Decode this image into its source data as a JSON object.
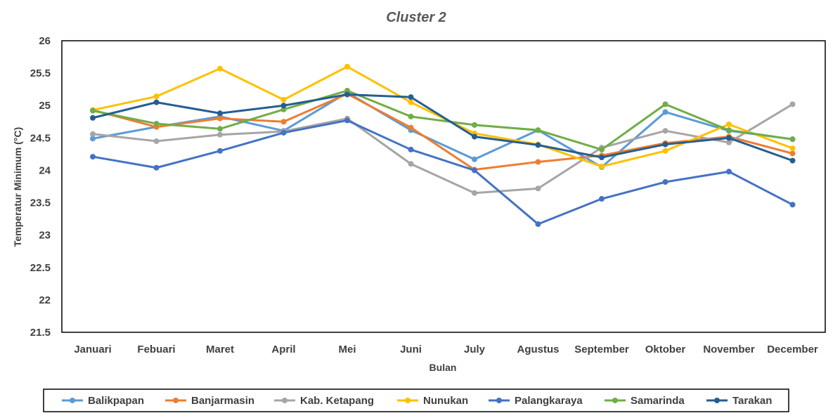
{
  "chart_data": {
    "type": "line",
    "title": "Cluster 2",
    "xlabel": "Bulan",
    "ylabel": "Temperatur Minimum (°C)",
    "ylim": [
      21.5,
      26
    ],
    "yticks": [
      "21.5",
      "22",
      "22.5",
      "23",
      "23.5",
      "24",
      "24.5",
      "25",
      "25.5",
      "26"
    ],
    "grid": false,
    "legend_position": "bottom",
    "categories": [
      "Januari",
      "Febuari",
      "Maret",
      "April",
      "Mei",
      "Juni",
      "July",
      "Agustus",
      "September",
      "Oktober",
      "November",
      "December"
    ],
    "series": [
      {
        "name": "Balikpapan",
        "color": "#5B9BD5",
        "values": [
          24.49,
          24.67,
          24.83,
          24.61,
          25.2,
          24.62,
          24.17,
          24.62,
          24.05,
          24.9,
          24.61,
          24.48
        ]
      },
      {
        "name": "Banjarmasin",
        "color": "#ED7D31",
        "values": [
          24.93,
          24.67,
          24.8,
          24.75,
          25.18,
          24.66,
          24.01,
          24.13,
          24.23,
          24.42,
          24.52,
          24.26
        ]
      },
      {
        "name": "Kab. Ketapang",
        "color": "#A5A5A5",
        "values": [
          24.56,
          24.45,
          24.55,
          24.6,
          24.8,
          24.1,
          23.65,
          23.72,
          24.35,
          24.61,
          24.43,
          25.02
        ]
      },
      {
        "name": "Nunukan",
        "color": "#FFC000",
        "values": [
          24.93,
          25.14,
          25.57,
          25.09,
          25.6,
          25.05,
          24.57,
          24.4,
          24.06,
          24.3,
          24.71,
          24.34
        ]
      },
      {
        "name": "Palangkaraya",
        "color": "#4472C4",
        "values": [
          24.21,
          24.04,
          24.3,
          24.58,
          24.77,
          24.32,
          24.0,
          23.17,
          23.56,
          23.82,
          23.98,
          23.47
        ]
      },
      {
        "name": "Samarinda",
        "color": "#70AD47",
        "values": [
          24.92,
          24.72,
          24.64,
          24.94,
          25.23,
          24.83,
          24.7,
          24.62,
          24.32,
          25.02,
          24.62,
          24.48
        ]
      },
      {
        "name": "Tarakan",
        "color": "#255E91",
        "values": [
          24.81,
          25.05,
          24.88,
          25.0,
          25.17,
          25.13,
          24.52,
          24.39,
          24.2,
          24.4,
          24.5,
          24.15
        ]
      }
    ]
  }
}
